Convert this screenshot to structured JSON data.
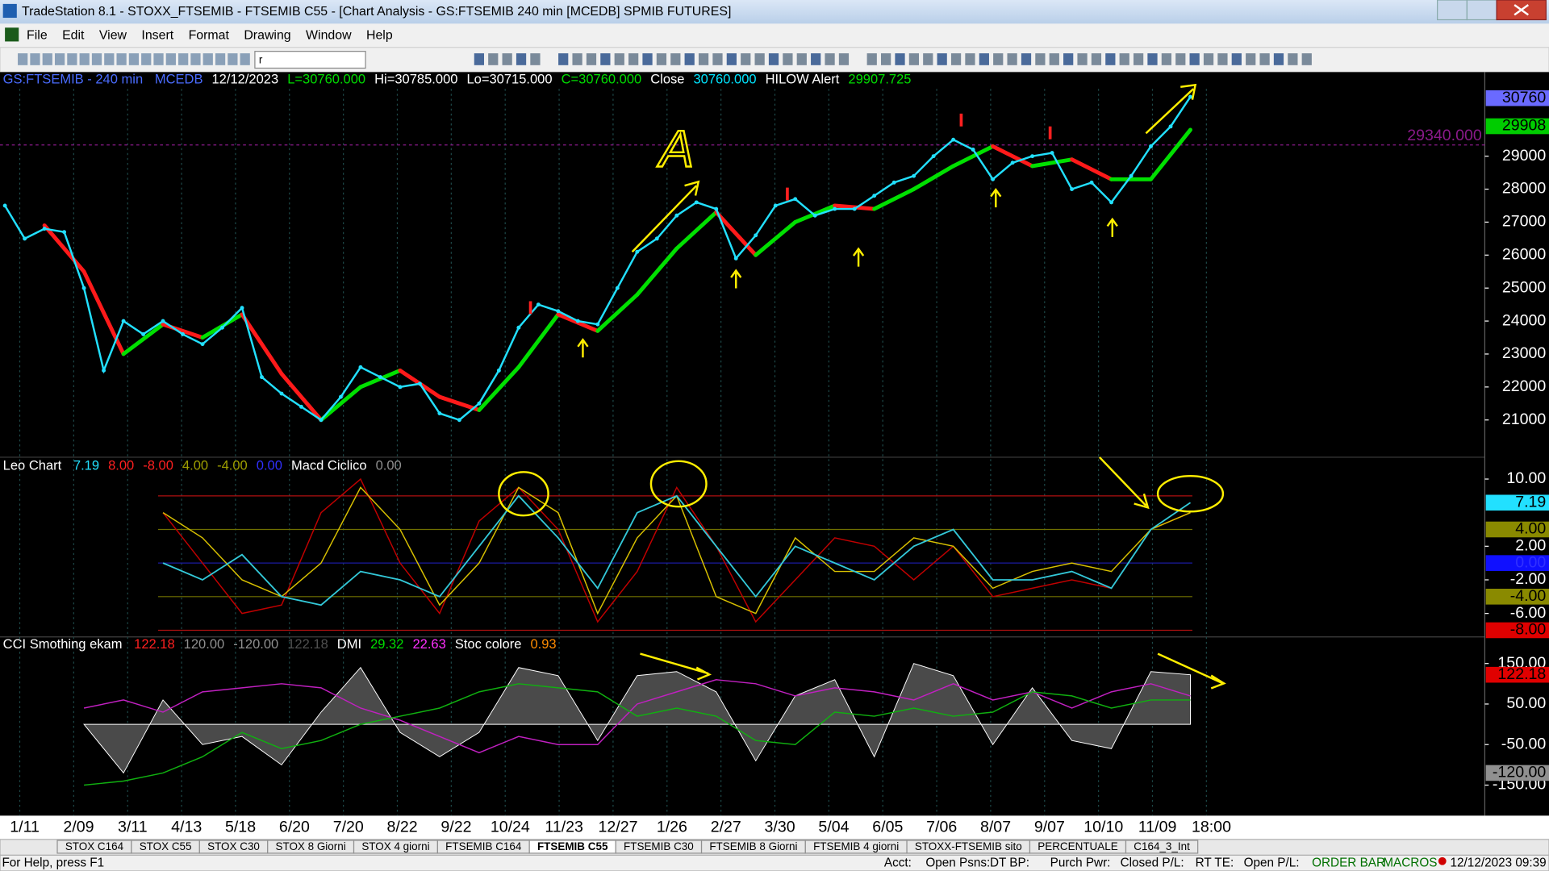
{
  "window": {
    "title": "TradeStation 8.1 - STOXX_FTSEMIB - FTSEMIB C55 - [Chart Analysis - GS:FTSEMIB  240 min  [MCEDB] SPMIB FUTURES]"
  },
  "menu": [
    "File",
    "Edit",
    "View",
    "Insert",
    "Format",
    "Drawing",
    "Window",
    "Help"
  ],
  "toolbar": {
    "symbol_box": "r"
  },
  "price_pane": {
    "header": [
      {
        "text": "GS:FTSEMIB - 240 min",
        "color": "#4a6cff"
      },
      {
        "text": "MCEDB",
        "color": "#4a6cff"
      },
      {
        "text": "12/12/2023",
        "color": "#ffffff"
      },
      {
        "text": "L=30760.000",
        "color": "#00dd00"
      },
      {
        "text": "Hi=30785.000",
        "color": "#ffffff"
      },
      {
        "text": "Lo=30715.000",
        "color": "#ffffff"
      },
      {
        "text": "C=30760.000",
        "color": "#00dd00"
      },
      {
        "text": "Close",
        "color": "#ffffff"
      },
      {
        "text": "30760.000",
        "color": "#00e5ff"
      },
      {
        "text": "HILOW Alert",
        "color": "#ffffff"
      },
      {
        "text": "29907.725",
        "color": "#00dd00"
      }
    ],
    "ylim": [
      19900,
      31550
    ],
    "yticks": [
      21000,
      22000,
      23000,
      24000,
      25000,
      26000,
      27000,
      28000,
      29000
    ],
    "markers": [
      {
        "value": 30760,
        "label": "30760",
        "color": "#6a6aff"
      },
      {
        "value": 29908,
        "label": "29908",
        "color": "#00cc00"
      }
    ],
    "level": {
      "value": 29340,
      "label": "29340.000",
      "color": "#8a1a8a"
    },
    "price": {
      "color": "#22e0ff",
      "values": [
        27500,
        26500,
        26800,
        26700,
        25000,
        22500,
        24000,
        23600,
        24000,
        23600,
        23300,
        23800,
        24400,
        22300,
        21800,
        21400,
        21000,
        21700,
        22600,
        22300,
        22000,
        22100,
        21200,
        21000,
        21500,
        22500,
        23800,
        24500,
        24300,
        24000,
        23900,
        25000,
        26100,
        26500,
        27200,
        27600,
        27400,
        25900,
        26600,
        27500,
        27700,
        27200,
        27400,
        27400,
        27800,
        28200,
        28400,
        29000,
        29500,
        29200,
        28300,
        28800,
        29000,
        29100,
        28000,
        28200,
        27600,
        28400,
        29300,
        29900,
        30800
      ]
    },
    "average": {
      "up_color": "#00e000",
      "down_color": "#ff1a1a",
      "values": [
        26900,
        25500,
        23000,
        23900,
        23500,
        24200,
        22400,
        21000,
        22000,
        22500,
        21700,
        21300,
        22600,
        24200,
        23700,
        24800,
        26200,
        27300,
        26000,
        27000,
        27500,
        27400,
        28000,
        28700,
        29300,
        28700,
        28900,
        28300,
        28300,
        29800
      ]
    },
    "annotation": "A"
  },
  "osc_pane": {
    "header": [
      {
        "text": "Leo Chart",
        "color": "#ffffff"
      },
      {
        "text": "7.19",
        "color": "#22e0ff"
      },
      {
        "text": "8.00",
        "color": "#ff2020"
      },
      {
        "text": "-8.00",
        "color": "#ff2020"
      },
      {
        "text": "4.00",
        "color": "#a0a000"
      },
      {
        "text": "-4.00",
        "color": "#a0a000"
      },
      {
        "text": "0.00",
        "color": "#3030ff"
      },
      {
        "text": "Macd Ciclico",
        "color": "#ffffff"
      },
      {
        "text": "0.00",
        "color": "#909090"
      }
    ],
    "ylim": [
      -8.8,
      12.6
    ],
    "yticks": [
      {
        "value": 10,
        "label": "10.00"
      },
      {
        "value": 2,
        "label": "2.00"
      },
      {
        "value": -2,
        "label": "-2.00"
      },
      {
        "value": -6,
        "label": "-6.00"
      }
    ],
    "levels": [
      {
        "value": 8,
        "color": "#b01010"
      },
      {
        "value": 4,
        "color": "#707000"
      },
      {
        "value": 0,
        "color": "#1a1aa0"
      },
      {
        "value": -4,
        "color": "#707000"
      },
      {
        "value": -8,
        "color": "#b01010"
      }
    ],
    "markers": [
      {
        "value": 7.19,
        "label": "7.19",
        "color": "#22e0ff"
      },
      {
        "value": 4,
        "label": "4.00",
        "color": "#8a8a00"
      },
      {
        "value": 0,
        "label": "0.00",
        "color": "#1010ff"
      },
      {
        "value": -4,
        "label": "-4.00",
        "color": "#8a8a00"
      },
      {
        "value": -8,
        "label": "-8.00",
        "color": "#e00000"
      }
    ],
    "series": [
      {
        "color": "#c00000",
        "values": [
          6,
          0,
          -6,
          -5,
          6,
          10,
          0,
          -6,
          5,
          9,
          4,
          -7,
          -1,
          9,
          2,
          -7,
          -2,
          3,
          2,
          -2,
          2,
          -4,
          -3,
          -2,
          -3,
          4,
          6
        ]
      },
      {
        "color": "#d8c000",
        "values": [
          6,
          3,
          -2,
          -4,
          0,
          9,
          4,
          -5,
          0,
          9,
          6,
          -6,
          3,
          8,
          -4,
          -6,
          3,
          -1,
          -1,
          3,
          2,
          -3,
          -1,
          0,
          -1,
          4,
          6
        ]
      },
      {
        "color": "#33c8d8",
        "values": [
          0,
          -2,
          1,
          -4,
          -5,
          -1,
          -2,
          -4,
          2,
          8,
          3,
          -3,
          6,
          8,
          2,
          -4,
          2,
          0,
          -2,
          2,
          4,
          -2,
          -2,
          -1,
          -3,
          4,
          7.19
        ]
      }
    ]
  },
  "cci_pane": {
    "header": [
      {
        "text": "CCI Smothing ekam",
        "color": "#ffffff"
      },
      {
        "text": "122.18",
        "color": "#ff2020"
      },
      {
        "text": "120.00",
        "color": "#909090"
      },
      {
        "text": "-120.00",
        "color": "#909090"
      },
      {
        "text": "122.18",
        "color": "#505050"
      },
      {
        "text": "DMI",
        "color": "#ffffff"
      },
      {
        "text": "29.32",
        "color": "#00dd00"
      },
      {
        "text": "22.63",
        "color": "#ff30ff"
      },
      {
        "text": "Stoc colore",
        "color": "#ffffff"
      },
      {
        "text": "0.93",
        "color": "#ff8c00"
      }
    ],
    "ylim": [
      -223,
      213
    ],
    "yticks": [
      {
        "value": 150,
        "label": "150.00"
      },
      {
        "value": 50,
        "label": "50.00"
      },
      {
        "value": -50,
        "label": "-50.00"
      },
      {
        "value": -150,
        "label": "-150.00"
      }
    ],
    "markers": [
      {
        "value": 122.18,
        "label": "122.18",
        "color": "#e00000"
      },
      {
        "value": -120,
        "label": "-120.00",
        "color": "#909090"
      }
    ],
    "area": {
      "color": "#4a4a4a",
      "values": [
        0,
        -120,
        60,
        -50,
        -30,
        -100,
        30,
        140,
        -20,
        -80,
        -20,
        140,
        120,
        -40,
        120,
        130,
        80,
        -90,
        70,
        110,
        -80,
        150,
        120,
        -50,
        90,
        -40,
        -60,
        130,
        122.18
      ]
    },
    "series": [
      {
        "color": "#c020c0",
        "values": [
          40,
          60,
          30,
          80,
          90,
          100,
          90,
          40,
          10,
          -30,
          -70,
          -30,
          -50,
          -50,
          50,
          80,
          110,
          100,
          70,
          90,
          80,
          60,
          100,
          60,
          80,
          40,
          80,
          100,
          70
        ]
      },
      {
        "color": "#10b010",
        "values": [
          -150,
          -140,
          -120,
          -80,
          -20,
          -60,
          -40,
          0,
          20,
          40,
          80,
          100,
          90,
          80,
          20,
          40,
          20,
          -40,
          -50,
          30,
          20,
          40,
          20,
          30,
          80,
          70,
          40,
          60,
          60
        ]
      }
    ]
  },
  "x_axis": {
    "labels": [
      "1/11",
      "2/09",
      "3/11",
      "4/13",
      "5/18",
      "6/20",
      "7/20",
      "8/22",
      "9/22",
      "10/24",
      "11/23",
      "12/27",
      "1/26",
      "2/27",
      "3/30",
      "5/04",
      "6/05",
      "7/06",
      "8/07",
      "9/07",
      "10/10",
      "11/09",
      "18:00"
    ]
  },
  "tabs": {
    "items": [
      "STOX C164",
      "STOX C55",
      "STOX C30",
      "STOX 8 Giorni",
      "STOX 4 giorni",
      "FTSEMIB C164",
      "FTSEMIB C55",
      "FTSEMIB C30",
      "FTSEMIB 8 Giorni",
      "FTSEMIB 4 giorni",
      "STOXX-FTSEMIB sito",
      "PERCENTUALE",
      "C164_3_Int"
    ],
    "active": 6
  },
  "status_bar": {
    "items": [
      "For Help, press F1",
      "Acct:",
      "Open Psns:",
      "DT BP:",
      "Purch Pwr:",
      "Closed P/L:",
      "RT TE:",
      "Open P/L:",
      "ORDER BAR",
      "MACROS",
      "12/12/2023 09:39"
    ]
  }
}
